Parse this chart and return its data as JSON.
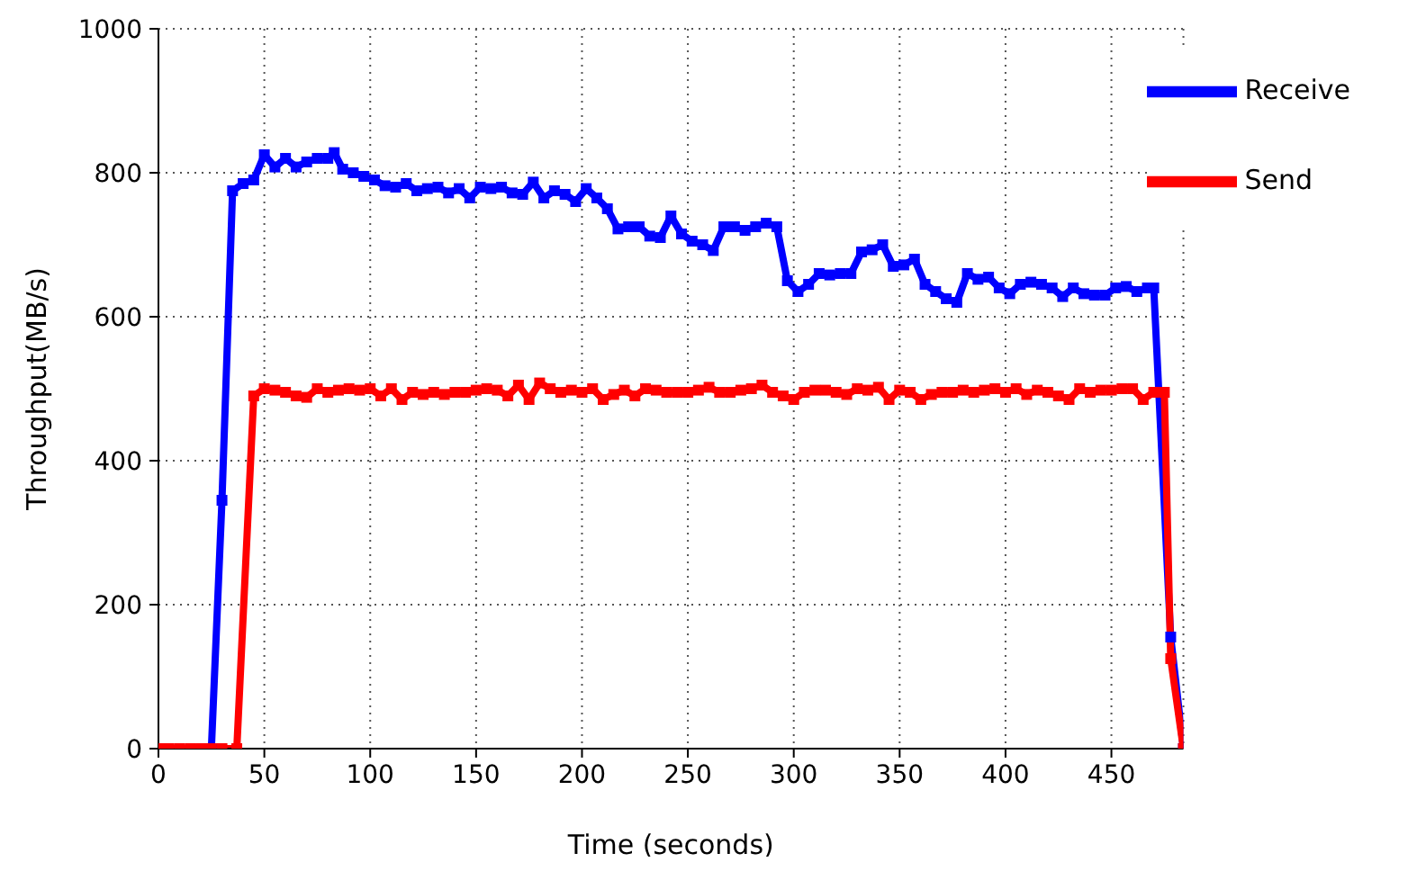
{
  "chart_data": {
    "type": "line",
    "xlabel": "Time (seconds)",
    "ylabel": "Throughput(MB/s)",
    "xlim": [
      0,
      484
    ],
    "xticks": [
      0,
      50,
      100,
      150,
      200,
      250,
      300,
      350,
      400,
      450
    ],
    "ylim": [
      0,
      1000
    ],
    "yticks": [
      0,
      200,
      400,
      600,
      800,
      1000
    ],
    "grid": true,
    "legend": "top right",
    "marker": "square",
    "line_style": "solid",
    "series": [
      {
        "name": "Receive",
        "color": "#0000ff",
        "x": [
          25,
          30,
          35,
          40,
          45,
          50,
          55,
          60,
          65,
          70,
          75,
          80,
          83,
          87,
          92,
          97,
          102,
          107,
          112,
          117,
          122,
          127,
          132,
          137,
          142,
          147,
          152,
          157,
          162,
          167,
          172,
          177,
          182,
          187,
          192,
          197,
          202,
          207,
          212,
          217,
          222,
          227,
          232,
          237,
          242,
          247,
          252,
          257,
          262,
          267,
          272,
          277,
          282,
          287,
          292,
          297,
          302,
          307,
          312,
          317,
          322,
          327,
          332,
          337,
          342,
          347,
          352,
          357,
          362,
          367,
          372,
          377,
          382,
          387,
          392,
          397,
          402,
          407,
          412,
          417,
          422,
          427,
          432,
          437,
          442,
          447,
          452,
          457,
          462,
          467,
          470,
          478,
          484
        ],
        "values": [
          0,
          345,
          775,
          785,
          790,
          825,
          808,
          820,
          808,
          815,
          820,
          820,
          828,
          805,
          800,
          795,
          790,
          782,
          780,
          785,
          775,
          778,
          780,
          772,
          778,
          765,
          780,
          778,
          780,
          772,
          770,
          787,
          765,
          775,
          770,
          760,
          778,
          765,
          750,
          722,
          725,
          725,
          712,
          710,
          740,
          715,
          705,
          700,
          692,
          725,
          725,
          720,
          725,
          730,
          725,
          650,
          635,
          645,
          660,
          658,
          660,
          660,
          690,
          693,
          700,
          670,
          672,
          680,
          645,
          635,
          625,
          620,
          660,
          652,
          655,
          640,
          632,
          645,
          648,
          645,
          640,
          628,
          640,
          632,
          630,
          630,
          640,
          642,
          635,
          640,
          640,
          155,
          0
        ]
      },
      {
        "name": "Send",
        "color": "#ff0000",
        "x": [
          0,
          5,
          10,
          15,
          20,
          25,
          30,
          37,
          45,
          50,
          55,
          60,
          65,
          70,
          75,
          80,
          85,
          90,
          95,
          100,
          105,
          110,
          115,
          120,
          125,
          130,
          135,
          140,
          145,
          150,
          155,
          160,
          165,
          170,
          175,
          180,
          185,
          190,
          195,
          200,
          205,
          210,
          215,
          220,
          225,
          230,
          235,
          240,
          245,
          250,
          255,
          260,
          265,
          270,
          275,
          280,
          285,
          290,
          295,
          300,
          305,
          310,
          315,
          320,
          325,
          330,
          335,
          340,
          345,
          350,
          355,
          360,
          365,
          370,
          375,
          380,
          385,
          390,
          395,
          400,
          405,
          410,
          415,
          420,
          425,
          430,
          435,
          440,
          445,
          450,
          455,
          460,
          465,
          470,
          475,
          478,
          484
        ],
        "values": [
          0,
          0,
          0,
          0,
          0,
          0,
          0,
          0,
          490,
          500,
          498,
          495,
          490,
          488,
          500,
          495,
          498,
          500,
          498,
          500,
          490,
          500,
          485,
          495,
          492,
          495,
          492,
          495,
          495,
          498,
          500,
          498,
          490,
          505,
          485,
          508,
          500,
          495,
          498,
          495,
          500,
          485,
          492,
          498,
          490,
          500,
          498,
          495,
          495,
          495,
          498,
          502,
          495,
          495,
          498,
          500,
          505,
          495,
          490,
          485,
          495,
          498,
          498,
          495,
          492,
          500,
          498,
          502,
          485,
          498,
          495,
          485,
          492,
          495,
          495,
          498,
          495,
          498,
          500,
          495,
          500,
          492,
          498,
          495,
          490,
          485,
          500,
          495,
          498,
          498,
          500,
          500,
          485,
          495,
          495,
          125,
          0
        ]
      }
    ]
  }
}
